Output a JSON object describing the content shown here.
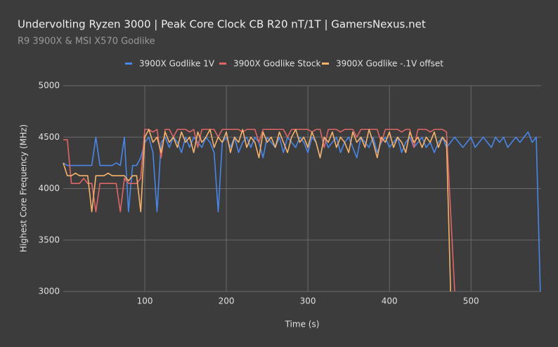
{
  "chart_data": {
    "type": "line",
    "title": "Undervolting Ryzen 3000 | Peak Core Clock CB R20 nT/1T | GamersNexus.net",
    "subtitle": "R9 3900X & MSI X570 Godlike",
    "x_label": "Time (s)",
    "y_label": "Highest Core Frequency (MHz)",
    "legend": "top",
    "grid": true,
    "xlim": [
      0,
      586
    ],
    "xticks": [
      100,
      200,
      300,
      400,
      500
    ],
    "ylim": [
      3000,
      5000
    ],
    "yticks": [
      3000,
      3500,
      4000,
      4500,
      5000
    ],
    "x": [
      0,
      5,
      10,
      15,
      20,
      25,
      30,
      35,
      40,
      45,
      50,
      55,
      60,
      65,
      70,
      75,
      80,
      85,
      90,
      95,
      100,
      105,
      110,
      115,
      120,
      125,
      130,
      135,
      140,
      145,
      150,
      155,
      160,
      165,
      170,
      175,
      180,
      185,
      190,
      195,
      200,
      205,
      210,
      215,
      220,
      225,
      230,
      235,
      240,
      245,
      250,
      255,
      260,
      265,
      270,
      275,
      280,
      285,
      290,
      295,
      300,
      305,
      310,
      315,
      320,
      325,
      330,
      335,
      340,
      345,
      350,
      355,
      360,
      365,
      370,
      375,
      380,
      385,
      390,
      395,
      400,
      405,
      410,
      415,
      420,
      425,
      430,
      435,
      440,
      445,
      450,
      455,
      460,
      465,
      470,
      475,
      480,
      485,
      490,
      495,
      500,
      505,
      510,
      515,
      520,
      525,
      530,
      535,
      540,
      545,
      550,
      555,
      560,
      565,
      570,
      575,
      580,
      585
    ],
    "series": [
      {
        "name": "3900X Godlike 1V",
        "color": "#4a86e8",
        "values": [
          4250,
          4225,
          4225,
          4225,
          4225,
          4225,
          4225,
          4225,
          4500,
          4225,
          4225,
          4225,
          4225,
          4250,
          4225,
          4500,
          3775,
          4225,
          4225,
          4300,
          4450,
          4500,
          4350,
          3775,
          4450,
          4500,
          4400,
          4500,
          4450,
          4350,
          4500,
          4400,
          4500,
          4450,
          4400,
          4500,
          4450,
          4350,
          3775,
          4450,
          4500,
          4400,
          4500,
          4350,
          4450,
          4500,
          4400,
          4500,
          4450,
          4300,
          4500,
          4450,
          4400,
          4500,
          4350,
          4500,
          4450,
          4400,
          4500,
          4450,
          4350,
          4500,
          4450,
          4300,
          4500,
          4400,
          4450,
          4500,
          4350,
          4450,
          4500,
          4400,
          4300,
          4500,
          4450,
          4400,
          4500,
          4350,
          4450,
          4500,
          4400,
          4450,
          4500,
          4350,
          4450,
          4500,
          4400,
          4450,
          4500,
          4400,
          4450,
          4350,
          4450,
          4500,
          4400,
          4450,
          4500,
          4450,
          4400,
          4450,
          4500,
          4400,
          4450,
          4500,
          4450,
          4400,
          4500,
          4450,
          4500,
          4400,
          4450,
          4500,
          4450,
          4500,
          4550,
          4450,
          4500,
          3000
        ]
      },
      {
        "name": "3900X Godlike Stock",
        "color": "#e06666",
        "values": [
          4475,
          4475,
          4050,
          4050,
          4050,
          4100,
          4050,
          4050,
          3775,
          4050,
          4050,
          4050,
          4050,
          4050,
          3775,
          4100,
          4050,
          4050,
          4050,
          4100,
          4575,
          4575,
          4550,
          4575,
          4300,
          4575,
          4575,
          4500,
          4575,
          4575,
          4575,
          4550,
          4575,
          4400,
          4575,
          4575,
          4575,
          4575,
          4500,
          4575,
          4575,
          4575,
          4575,
          4575,
          4550,
          4575,
          4575,
          4575,
          4450,
          4575,
          4575,
          4575,
          4575,
          4575,
          4575,
          4500,
          4575,
          4575,
          4575,
          4575,
          4575,
          4550,
          4575,
          4575,
          4400,
          4575,
          4575,
          4575,
          4550,
          4575,
          4575,
          4575,
          4500,
          4575,
          4575,
          4575,
          4575,
          4575,
          4450,
          4575,
          4575,
          4575,
          4575,
          4550,
          4575,
          4575,
          4400,
          4575,
          4575,
          4575,
          4550,
          4575,
          4575,
          4575,
          4550,
          3775,
          3000,
          null,
          null,
          null,
          null,
          null,
          null,
          null,
          null,
          null,
          null,
          null,
          null,
          null,
          null,
          null,
          null,
          null,
          null,
          null,
          null,
          null
        ]
      },
      {
        "name": "3900X Godlike -.1V offset",
        "color": "#f6b26b",
        "values": [
          4250,
          4125,
          4125,
          4150,
          4125,
          4125,
          4125,
          3775,
          4125,
          4125,
          4125,
          4150,
          4125,
          4125,
          4125,
          4125,
          4075,
          4125,
          4125,
          3775,
          4500,
          4575,
          4450,
          4500,
          4350,
          4550,
          4450,
          4500,
          4400,
          4550,
          4450,
          4500,
          4350,
          4550,
          4450,
          4500,
          4575,
          4400,
          4500,
          4450,
          4550,
          4350,
          4500,
          4450,
          4575,
          4400,
          4500,
          4450,
          4300,
          4550,
          4450,
          4500,
          4400,
          4550,
          4450,
          4350,
          4500,
          4575,
          4450,
          4500,
          4400,
          4550,
          4450,
          4300,
          4500,
          4450,
          4550,
          4400,
          4500,
          4450,
          4350,
          4550,
          4450,
          4500,
          4400,
          4575,
          4450,
          4300,
          4500,
          4450,
          4550,
          4400,
          4500,
          4450,
          4350,
          4550,
          4450,
          4500,
          4400,
          4500,
          4450,
          4550,
          4400,
          4500,
          4450,
          3000,
          null,
          null,
          null,
          null,
          null,
          null,
          null,
          null,
          null,
          null,
          null,
          null,
          null,
          null,
          null,
          null,
          null,
          null,
          null,
          null,
          null,
          null
        ]
      }
    ]
  }
}
